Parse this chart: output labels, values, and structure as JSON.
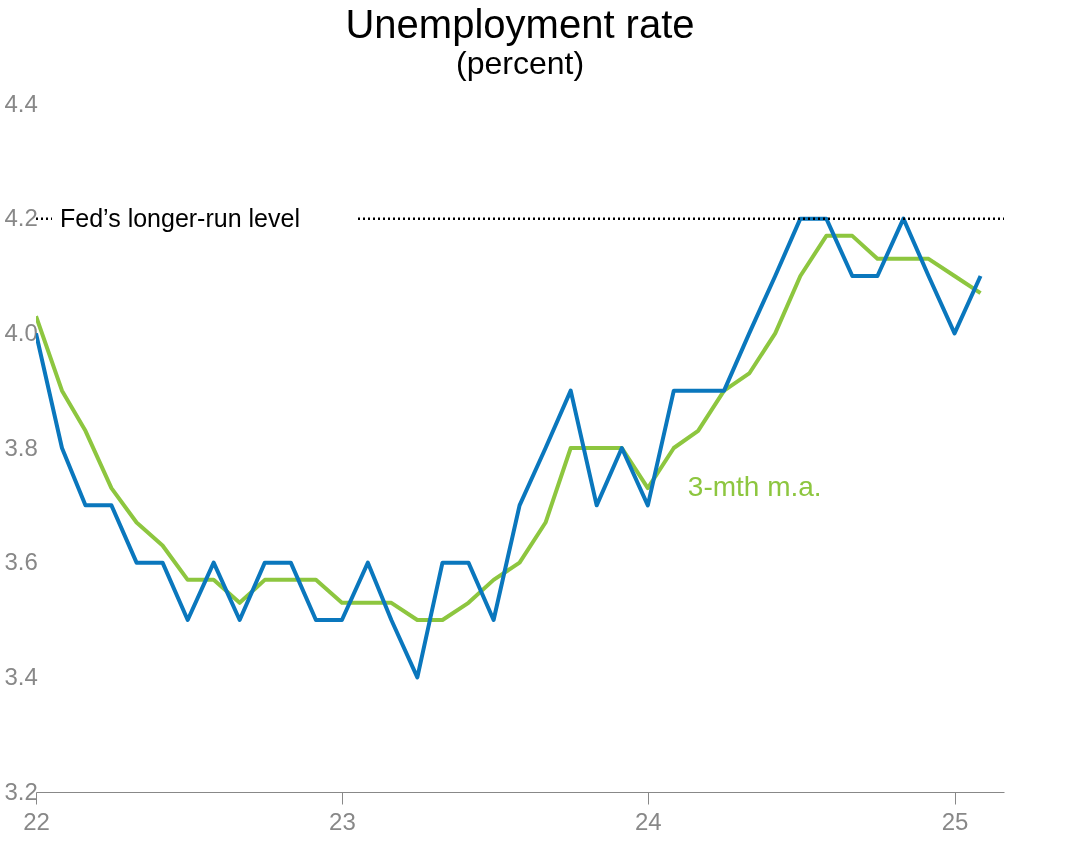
{
  "chart_data": {
    "type": "line",
    "title": "Unemployment rate",
    "subtitle": "(percent)",
    "x": [
      "2022-01",
      "2022-02",
      "2022-03",
      "2022-04",
      "2022-05",
      "2022-06",
      "2022-07",
      "2022-08",
      "2022-09",
      "2022-10",
      "2022-11",
      "2022-12",
      "2023-01",
      "2023-02",
      "2023-03",
      "2023-04",
      "2023-05",
      "2023-06",
      "2023-07",
      "2023-08",
      "2023-09",
      "2023-10",
      "2023-11",
      "2023-12",
      "2024-01",
      "2024-02",
      "2024-03",
      "2024-04",
      "2024-05",
      "2024-06",
      "2024-07",
      "2024-08",
      "2024-09",
      "2024-10",
      "2024-11",
      "2024-12",
      "2025-01",
      "2025-02"
    ],
    "series": [
      {
        "color": "#8dc63f",
        "name": "3-mth m.a.",
        "values": [
          4.03,
          3.9,
          3.83,
          3.73,
          3.67,
          3.63,
          3.57,
          3.57,
          3.53,
          3.57,
          3.57,
          3.57,
          3.53,
          3.53,
          3.53,
          3.5,
          3.5,
          3.53,
          3.57,
          3.6,
          3.67,
          3.8,
          3.8,
          3.8,
          3.73,
          3.8,
          3.83,
          3.9,
          3.93,
          4.0,
          4.1,
          4.17,
          4.17,
          4.13,
          4.13,
          4.13,
          4.1,
          4.07
        ]
      },
      {
        "color": "#0a77bd",
        "values": [
          4.0,
          3.8,
          3.7,
          3.7,
          3.6,
          3.6,
          3.5,
          3.6,
          3.5,
          3.6,
          3.6,
          3.5,
          3.5,
          3.6,
          3.5,
          3.4,
          3.6,
          3.6,
          3.5,
          3.7,
          3.8,
          3.9,
          3.7,
          3.8,
          3.7,
          3.9,
          3.9,
          3.9,
          4.0,
          4.1,
          4.2,
          4.2,
          4.1,
          4.1,
          4.2,
          4.1,
          4.0,
          4.1
        ]
      }
    ],
    "xlim": [
      "2022-01",
      "2025-03"
    ],
    "xticks": [
      {
        "value": "2022-01",
        "label": "22"
      },
      {
        "value": "2023-01",
        "label": "23"
      },
      {
        "value": "2024-01",
        "label": "24"
      },
      {
        "value": "2025-01",
        "label": "25"
      }
    ],
    "ylim": [
      3.2,
      4.4
    ],
    "yticks": [
      3.2,
      3.4,
      3.6,
      3.8,
      {
        "value": 4,
        "label": "4.0"
      },
      4.2,
      4.4
    ],
    "ref_lines": [
      {
        "axis": "y",
        "value": 4.2,
        "label": "Fed’s longer-run level",
        "color": "#000000",
        "line_style": "dotted"
      }
    ],
    "grid": false,
    "marker": "none",
    "line_style": "solid"
  }
}
